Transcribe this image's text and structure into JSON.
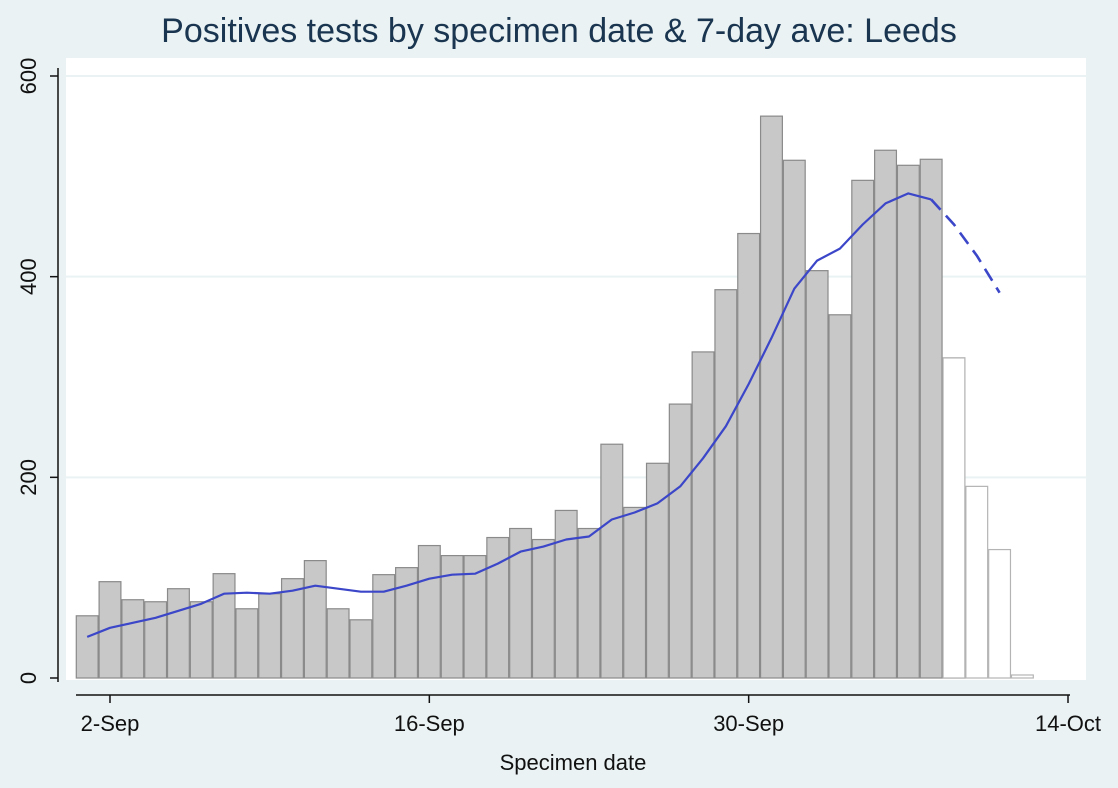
{
  "chart_data": {
    "type": "bar",
    "title": "Positives tests by specimen date & 7-day ave: Leeds",
    "xlabel": "Specimen date",
    "ylabel": "",
    "ylim": [
      0,
      600
    ],
    "yticks": [
      0,
      200,
      400,
      600
    ],
    "xlim": [
      "2020-08-31",
      "2020-10-14"
    ],
    "xticks": [
      {
        "date": "2020-09-02",
        "label": "2-Sep"
      },
      {
        "date": "2020-09-16",
        "label": "16-Sep"
      },
      {
        "date": "2020-09-30",
        "label": "30-Sep"
      },
      {
        "date": "2020-10-14",
        "label": "14-Oct"
      }
    ],
    "grid": true,
    "legend": "none",
    "colors": {
      "complete_bar_fill": "#c8c8c8",
      "complete_bar_stroke": "#8a8a8a",
      "incomplete_bar_fill": "#ffffff",
      "incomplete_bar_stroke": "#b4b4b4",
      "average_line": "#3b46c8",
      "background": "#eaf2f3",
      "plot_background": "#ffffff",
      "title": "#1a3550"
    },
    "series": [
      {
        "type": "bar",
        "style": "complete",
        "x": [
          "2020-09-01",
          "2020-09-02",
          "2020-09-03",
          "2020-09-04",
          "2020-09-05",
          "2020-09-06",
          "2020-09-07",
          "2020-09-08",
          "2020-09-09",
          "2020-09-10",
          "2020-09-11",
          "2020-09-12",
          "2020-09-13",
          "2020-09-14",
          "2020-09-15",
          "2020-09-16",
          "2020-09-17",
          "2020-09-18",
          "2020-09-19",
          "2020-09-20",
          "2020-09-21",
          "2020-09-22",
          "2020-09-23",
          "2020-09-24",
          "2020-09-25",
          "2020-09-26",
          "2020-09-27",
          "2020-09-28",
          "2020-09-29",
          "2020-09-30",
          "2020-10-01",
          "2020-10-02",
          "2020-10-03",
          "2020-10-04",
          "2020-10-05",
          "2020-10-06",
          "2020-10-07",
          "2020-10-08",
          "2020-10-09"
        ],
        "values": [
          62,
          96,
          78,
          76,
          89,
          76,
          104,
          69,
          84,
          99,
          117,
          69,
          58,
          103,
          110,
          132,
          122,
          122,
          140,
          149,
          138,
          167,
          149,
          233,
          170,
          214,
          273,
          325,
          387,
          443,
          560,
          516,
          406,
          362,
          496,
          526,
          511,
          517,
          319
        ]
      },
      {
        "type": "bar",
        "style": "incomplete",
        "x": [
          "2020-10-09",
          "2020-10-10",
          "2020-10-11",
          "2020-10-12"
        ],
        "values": [
          319,
          191,
          128,
          3
        ]
      },
      {
        "type": "line",
        "style": "solid",
        "x": [
          "2020-09-01",
          "2020-09-02",
          "2020-09-03",
          "2020-09-04",
          "2020-09-05",
          "2020-09-06",
          "2020-09-07",
          "2020-09-08",
          "2020-09-09",
          "2020-09-10",
          "2020-09-11",
          "2020-09-12",
          "2020-09-13",
          "2020-09-14",
          "2020-09-15",
          "2020-09-16",
          "2020-09-17",
          "2020-09-18",
          "2020-09-19",
          "2020-09-20",
          "2020-09-21",
          "2020-09-22",
          "2020-09-23",
          "2020-09-24",
          "2020-09-25",
          "2020-09-26",
          "2020-09-27",
          "2020-09-28",
          "2020-09-29",
          "2020-09-30",
          "2020-10-01",
          "2020-10-02",
          "2020-10-03",
          "2020-10-04",
          "2020-10-05",
          "2020-10-06",
          "2020-10-07",
          "2020-10-08"
        ],
        "values": [
          41,
          50,
          55,
          60,
          67,
          74,
          84,
          85,
          84,
          87,
          92,
          89,
          86,
          86,
          92,
          99,
          103,
          104,
          114,
          126,
          131,
          138,
          141,
          158,
          165,
          174,
          191,
          219,
          251,
          293,
          339,
          388,
          416,
          428,
          452,
          473,
          483,
          477
        ]
      },
      {
        "type": "line",
        "style": "dashed",
        "x": [
          "2020-10-08",
          "2020-10-09",
          "2020-10-10",
          "2020-10-11"
        ],
        "values": [
          477,
          452,
          421,
          384
        ]
      }
    ]
  }
}
